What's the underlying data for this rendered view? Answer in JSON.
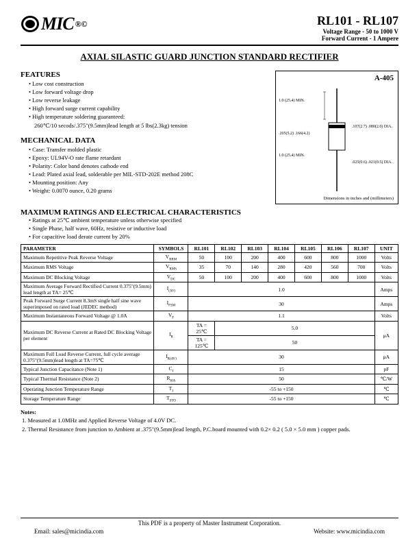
{
  "header": {
    "logo_text": "MIC",
    "logo_marks": "®©",
    "part_range": "RL101 - RL107",
    "voltage_line": "Voltage Range - 50 to 1000 V",
    "current_line": "Forward Current - 1 Ampere"
  },
  "main_title": "AXIAL SILASTIC GUARD JUNCTION STANDARD RECTIFIER",
  "features": {
    "title": "FEATURES",
    "items": [
      "Low cost construction",
      "Low forward voltage drop",
      "Low reverse leakage",
      "High forward surge current capability",
      "High temperature soldering guaranteed:"
    ],
    "sub": "260℃/10 secods/.375\"(9.5mm)lead length at 5 lbs(2.3kg) tension"
  },
  "mechanical": {
    "title": "MECHANICAL DATA",
    "items": [
      "Case: Transfer molded plastic",
      "Epoxy: UL94V-O rate flame retardant",
      "Polarity: Color band denotes cathode end",
      "Lead: Plated axial lead, solderable per MIL-STD-202E method 208C",
      "Mounting position: Any",
      "Weight:  0.0070 ounce, 0.20 grams"
    ]
  },
  "diagram": {
    "package": "A-405",
    "dim1": "1.0 (25.4) MIN.",
    "dim2": ".205(5.2) .166(4.2)",
    "dim3": ".107(2.7) .080(2.0)",
    "dim4": "1.0 (25.4) MIN.",
    "dim5": ".025(0.6) .021(0.5)",
    "dia": "DIA.",
    "footer": "Dimensions in inches and (millimeters)"
  },
  "maxratings": {
    "title": "MAXIMUM RATINGS AND ELECTRICAL CHARACTERISTICS",
    "notes": [
      "Ratings at 25℃ ambient temperature unless otherwise specified",
      "Single Phase, half wave, 60Hz, resistive or inductive load",
      "For capacitive load derate current by 20%"
    ]
  },
  "table": {
    "headers": [
      "PARAMETER",
      "SYMBOLS",
      "RL101",
      "RL102",
      "RL103",
      "RL104",
      "RL105",
      "RL106",
      "RL107",
      "UNIT"
    ],
    "rows": [
      {
        "param": "Maximum Repetitive Peak Reverse Voltage",
        "sym": "V",
        "sub": "RRM",
        "vals": [
          "50",
          "100",
          "200",
          "400",
          "600",
          "800",
          "1000"
        ],
        "unit": "Volts"
      },
      {
        "param": "Maximum RMS Voltage",
        "sym": "V",
        "sub": "RMS",
        "vals": [
          "35",
          "70",
          "140",
          "280",
          "420",
          "560",
          "700"
        ],
        "unit": "Volts"
      },
      {
        "param": "Maximum DC Blocking Voltage",
        "sym": "V",
        "sub": "DC",
        "vals": [
          "50",
          "100",
          "200",
          "400",
          "600",
          "800",
          "1000"
        ],
        "unit": "Volts"
      },
      {
        "param": "Maximum Average Forward Rectified Current 0.375\"(9.5mm) lead length at TA= 25℃",
        "sym": "I",
        "sub": "(AV)",
        "span": "1.0",
        "unit": "Amps"
      },
      {
        "param": "Peak Forward Surge Current 8.3mS single half sine wave superimposed on rated load (JEDEC method)",
        "sym": "I",
        "sub": "FSM",
        "span": "30",
        "unit": "Amps"
      },
      {
        "param": "Maximum Instantaneous Forward Voltage @ 1.0A",
        "sym": "V",
        "sub": "F",
        "span": "1.1",
        "unit": "Volts"
      },
      {
        "param": "Maximum DC Reverse Current at Rated DC Blocking Voltage per element",
        "sym": "I",
        "sub": "R",
        "cond1": "TA = 25℃",
        "cond2": "TA = 125℃",
        "span1": "5.0",
        "span2": "50",
        "unit": "μA"
      },
      {
        "param": "Maximum Full Load Reverse Current, full cycle average 0.375\"(9.5mm)lead length at TA=75℃",
        "sym": "I",
        "sub": "R(AV)",
        "span": "30",
        "unit": "μA"
      },
      {
        "param": "Typical Junction Capacitance (Note 1)",
        "sym": "C",
        "sub": "J",
        "span": "15",
        "unit": "pF"
      },
      {
        "param": "Typical Thermal Resistance (Note 2)",
        "sym": "R",
        "sub": "θJA",
        "span": "50",
        "unit": "℃/W"
      },
      {
        "param": "Operating Junction Temperature Range",
        "sym": "T",
        "sub": "J",
        "span": "-55 to +150",
        "unit": "℃"
      },
      {
        "param": "Storage Temperature Range",
        "sym": "T",
        "sub": "STO",
        "span": "-55 to +150",
        "unit": "℃"
      }
    ]
  },
  "notes": {
    "title": "Notes:",
    "items": [
      "1.  Measured at 1.0MHz and Applied Reverse Voltage of 4.0V DC.",
      "2.  Thermal Resistance from junction to Ambient at .375\"(9.5mm)lead length, P.C.board mounted with 0.2× 0.2 ( 5.0  × 5.0 mm ) copper pads."
    ]
  },
  "footer": {
    "line1": "This PDF is a property of Master Instrument Corporation.",
    "email": "Email: sales@micindia.com",
    "website": "Website: www.micindia.com"
  }
}
